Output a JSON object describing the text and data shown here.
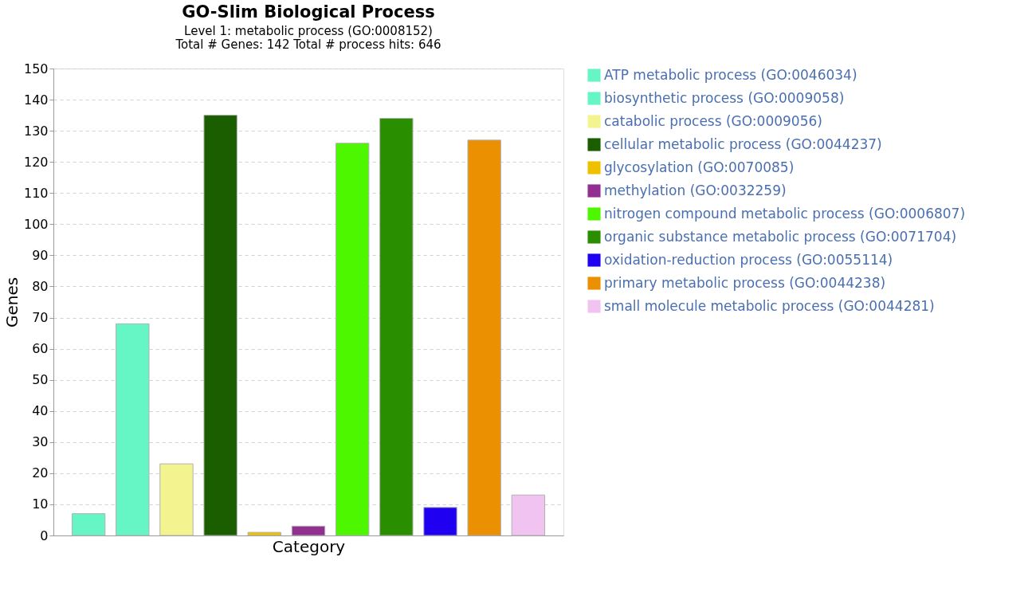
{
  "chart_data": {
    "type": "bar",
    "title": "GO-Slim Biological Process",
    "subtitle": "Level 1: metabolic process (GO:0008152)",
    "annotations": [
      "Total # Genes: 142    Total # process hits: 646"
    ],
    "xlabel": "Category",
    "ylabel": "Genes",
    "categories": [
      null,
      null,
      null,
      null,
      null,
      null,
      null,
      null,
      null,
      null,
      null
    ],
    "series": [
      {
        "name": "ATP metabolic process (GO:0046034)",
        "color": "#66f5c5",
        "values": [
          7,
          null,
          null,
          null,
          null,
          null,
          null,
          null,
          null,
          null,
          null
        ]
      },
      {
        "name": "biosynthetic process (GO:0009058)",
        "color": "#66f5c5",
        "values": [
          null,
          68,
          null,
          null,
          null,
          null,
          null,
          null,
          null,
          null,
          null
        ]
      },
      {
        "name": "catabolic process (GO:0009056)",
        "color": "#f3f38f",
        "values": [
          null,
          null,
          23,
          null,
          null,
          null,
          null,
          null,
          null,
          null,
          null
        ]
      },
      {
        "name": "cellular metabolic process (GO:0044237)",
        "color": "#1a5e00",
        "values": [
          null,
          null,
          null,
          135,
          null,
          null,
          null,
          null,
          null,
          null,
          null
        ]
      },
      {
        "name": "glycosylation (GO:0070085)",
        "color": "#f0c000",
        "values": [
          null,
          null,
          null,
          null,
          1,
          null,
          null,
          null,
          null,
          null,
          null
        ]
      },
      {
        "name": "methylation (GO:0032259)",
        "color": "#913090",
        "values": [
          null,
          null,
          null,
          null,
          null,
          3,
          null,
          null,
          null,
          null,
          null
        ]
      },
      {
        "name": "nitrogen compound metabolic process (GO:0006807)",
        "color": "#4cf700",
        "values": [
          null,
          null,
          null,
          null,
          null,
          null,
          126,
          null,
          null,
          null,
          null
        ]
      },
      {
        "name": "organic substance metabolic process (GO:0071704)",
        "color": "#2a8f00",
        "values": [
          null,
          null,
          null,
          null,
          null,
          null,
          null,
          134,
          null,
          null,
          null
        ]
      },
      {
        "name": "oxidation-reduction process (GO:0055114)",
        "color": "#2000f0",
        "values": [
          null,
          null,
          null,
          null,
          null,
          null,
          null,
          null,
          9,
          null,
          null
        ]
      },
      {
        "name": "primary metabolic process (GO:0044238)",
        "color": "#eb9000",
        "values": [
          null,
          null,
          null,
          null,
          null,
          null,
          null,
          null,
          null,
          127,
          null
        ]
      },
      {
        "name": "small molecule metabolic process (GO:0044281)",
        "color": "#f0c3f0",
        "values": [
          null,
          null,
          null,
          null,
          null,
          null,
          null,
          null,
          null,
          null,
          13
        ]
      }
    ],
    "ylim": [
      0,
      150
    ],
    "yticks": [
      0,
      10,
      20,
      30,
      40,
      50,
      60,
      70,
      80,
      90,
      100,
      110,
      120,
      130,
      140,
      150
    ],
    "grid": "y",
    "legend": "right",
    "tick_labels": "y"
  }
}
